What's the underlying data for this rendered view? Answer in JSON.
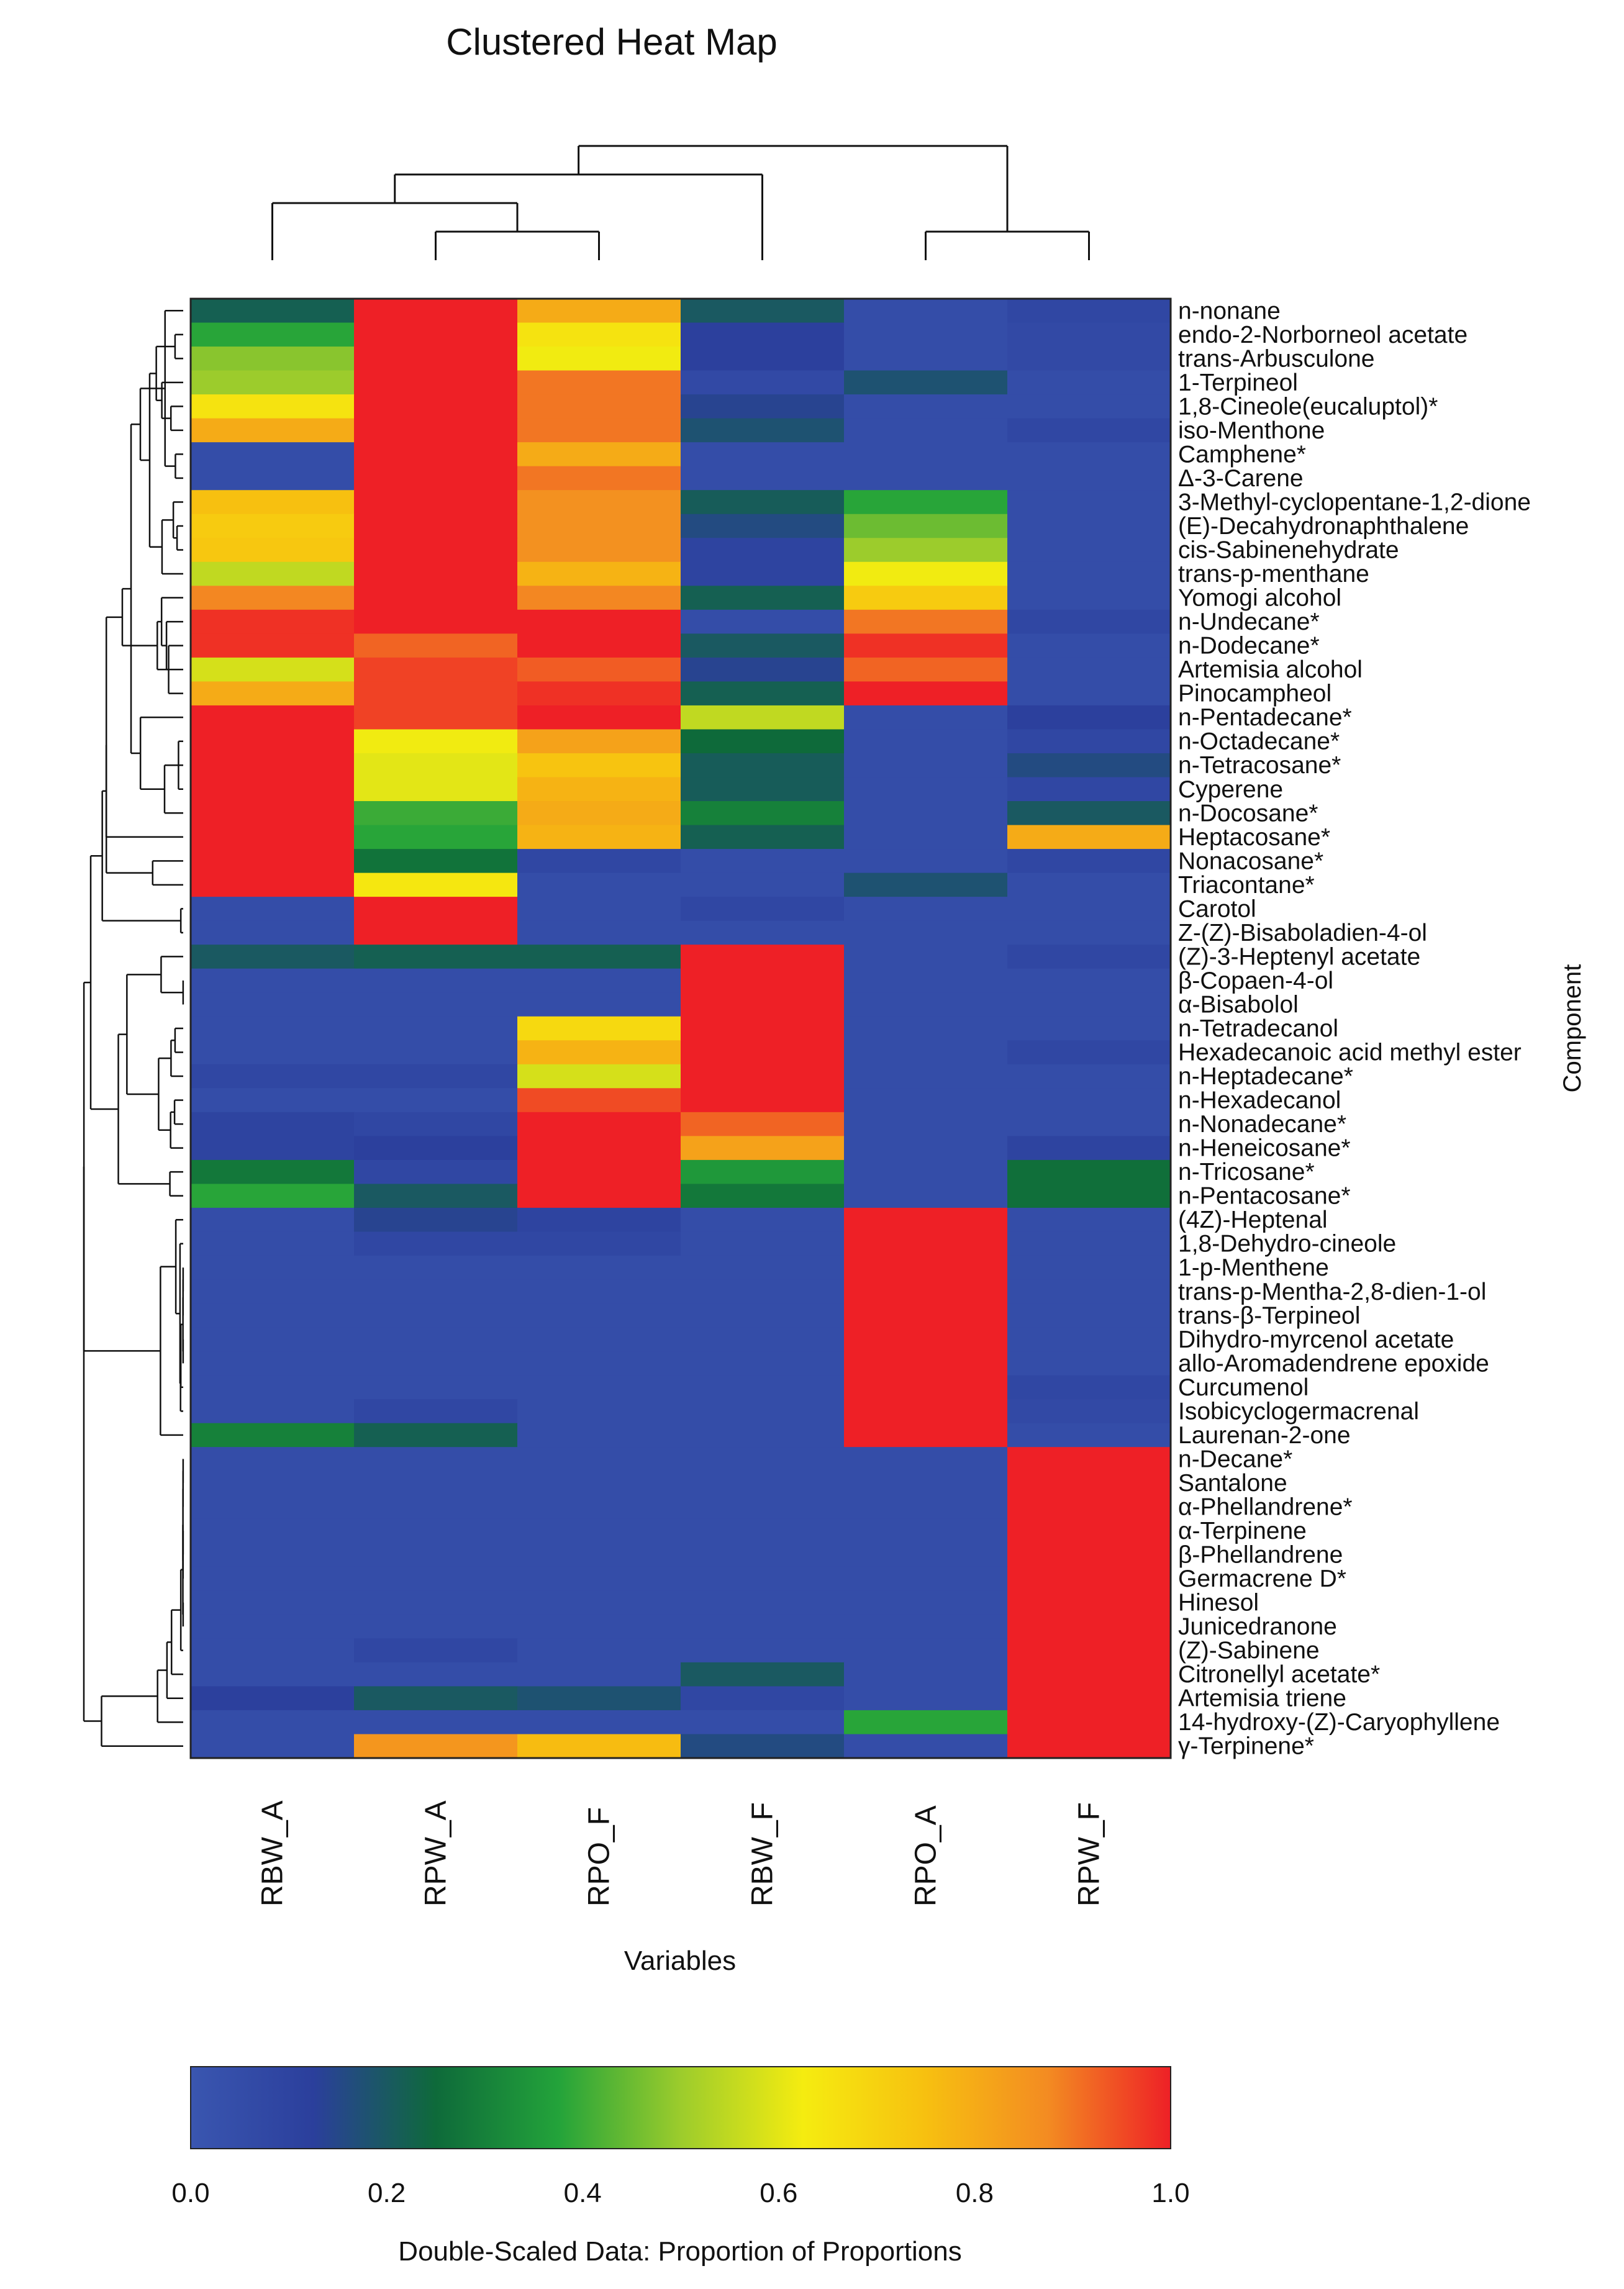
{
  "chart_data": {
    "type": "heatmap",
    "title": "Clustered Heat Map",
    "xlabel": "Variables",
    "ylabel": "Component",
    "columns": [
      "RBW_A",
      "RPW_A",
      "RPO_F",
      "RBW_F",
      "RPO_A",
      "RPW_F"
    ],
    "rows": [
      "n-nonane",
      "endo-2-Norborneol acetate",
      "trans-Arbusculone",
      "1-Terpineol",
      "1,8-Cineole(eucaluptol)*",
      "iso-Menthone",
      "Camphene*",
      "Δ-3-Carene",
      "3-Methyl-cyclopentane-1,2-dione",
      "(E)-Decahydronaphthalene",
      "cis-Sabinenehydrate",
      "trans-p-menthane",
      "Yomogi alcohol",
      "n-Undecane*",
      "n-Dodecane*",
      "Artemisia alcohol",
      "Pinocampheol",
      "n-Pentadecane*",
      "n-Octadecane*",
      "n-Tetracosane*",
      "Cyperene",
      "n-Docosane*",
      "Heptacosane*",
      "Nonacosane*",
      "Triacontane*",
      "Carotol",
      "Z-(Z)-Bisaboladien-4-ol",
      "(Z)-3-Heptenyl acetate",
      "β-Copaen-4-ol",
      "α-Bisabolol",
      "n-Tetradecanol",
      "Hexadecanoic acid methyl ester",
      "n-Heptadecane*",
      "n-Hexadecanol",
      "n-Nonadecane*",
      "n-Heneicosane*",
      "n-Tricosane*",
      "n-Pentacosane*",
      "(4Z)-Heptenal",
      "1,8-Dehydro-cineole",
      "1-p-Menthene",
      "trans-p-Mentha-2,8-dien-1-ol",
      "trans-β-Terpineol",
      "Dihydro-myrcenol acetate",
      "allo-Aromadendrene epoxide",
      "Curcumenol",
      "Isobicyclogermacrenal",
      "Laurenan-2-one",
      "n-Decane*",
      "Santalone",
      "α-Phellandrene*",
      "α-Terpinene",
      "β-Phellandrene",
      "Germacrene D*",
      "Hinesol",
      "Junicedranone",
      "(Z)-Sabinene",
      "Citronellyl acetate*",
      "Artemisia triene",
      "14-hydroxy-(Z)-Caryophyllene",
      "γ-Terpinene*"
    ],
    "values": [
      [
        0.22,
        1.0,
        0.8,
        0.2,
        0.05,
        0.08
      ],
      [
        0.38,
        1.0,
        0.65,
        0.12,
        0.05,
        0.07
      ],
      [
        0.48,
        1.0,
        0.62,
        0.12,
        0.05,
        0.07
      ],
      [
        0.5,
        1.0,
        0.9,
        0.07,
        0.18,
        0.05
      ],
      [
        0.65,
        1.0,
        0.9,
        0.14,
        0.05,
        0.05
      ],
      [
        0.8,
        1.0,
        0.9,
        0.18,
        0.05,
        0.08
      ],
      [
        0.05,
        1.0,
        0.8,
        0.05,
        0.05,
        0.05
      ],
      [
        0.05,
        1.0,
        0.9,
        0.05,
        0.05,
        0.05
      ],
      [
        0.75,
        1.0,
        0.86,
        0.21,
        0.38,
        0.05
      ],
      [
        0.72,
        1.0,
        0.86,
        0.16,
        0.45,
        0.05
      ],
      [
        0.73,
        1.0,
        0.86,
        0.1,
        0.5,
        0.05
      ],
      [
        0.55,
        1.0,
        0.78,
        0.1,
        0.62,
        0.05
      ],
      [
        0.88,
        1.0,
        0.88,
        0.22,
        0.72,
        0.05
      ],
      [
        0.98,
        1.0,
        1.0,
        0.05,
        0.9,
        0.08
      ],
      [
        0.98,
        0.92,
        1.0,
        0.2,
        0.98,
        0.05
      ],
      [
        0.58,
        0.96,
        0.93,
        0.14,
        0.92,
        0.05
      ],
      [
        0.8,
        0.96,
        0.98,
        0.22,
        1.0,
        0.05
      ],
      [
        1.0,
        0.96,
        1.0,
        0.55,
        0.05,
        0.12
      ],
      [
        1.0,
        0.62,
        0.82,
        0.25,
        0.05,
        0.08
      ],
      [
        1.0,
        0.6,
        0.74,
        0.21,
        0.05,
        0.16
      ],
      [
        1.0,
        0.6,
        0.78,
        0.21,
        0.05,
        0.08
      ],
      [
        1.0,
        0.4,
        0.8,
        0.3,
        0.05,
        0.2
      ],
      [
        1.0,
        0.38,
        0.78,
        0.22,
        0.05,
        0.8
      ],
      [
        1.0,
        0.27,
        0.08,
        0.05,
        0.05,
        0.08
      ],
      [
        1.0,
        0.64,
        0.05,
        0.05,
        0.18,
        0.05
      ],
      [
        0.05,
        1.0,
        0.05,
        0.08,
        0.05,
        0.05
      ],
      [
        0.05,
        1.0,
        0.05,
        0.05,
        0.05,
        0.05
      ],
      [
        0.2,
        0.22,
        0.22,
        1.0,
        0.05,
        0.08
      ],
      [
        0.05,
        0.05,
        0.05,
        1.0,
        0.05,
        0.05
      ],
      [
        0.05,
        0.05,
        0.05,
        1.0,
        0.05,
        0.05
      ],
      [
        0.05,
        0.05,
        0.68,
        1.0,
        0.05,
        0.05
      ],
      [
        0.05,
        0.05,
        0.78,
        1.0,
        0.05,
        0.08
      ],
      [
        0.08,
        0.08,
        0.58,
        1.0,
        0.05,
        0.05
      ],
      [
        0.05,
        0.05,
        0.95,
        1.0,
        0.05,
        0.05
      ],
      [
        0.1,
        0.08,
        1.0,
        0.92,
        0.05,
        0.05
      ],
      [
        0.1,
        0.12,
        1.0,
        0.82,
        0.05,
        0.1
      ],
      [
        0.28,
        0.08,
        1.0,
        0.35,
        0.05,
        0.26
      ],
      [
        0.38,
        0.2,
        1.0,
        0.28,
        0.05,
        0.26
      ],
      [
        0.05,
        0.14,
        0.1,
        0.05,
        1.0,
        0.05
      ],
      [
        0.05,
        0.08,
        0.08,
        0.05,
        1.0,
        0.05
      ],
      [
        0.05,
        0.05,
        0.05,
        0.05,
        1.0,
        0.05
      ],
      [
        0.05,
        0.05,
        0.05,
        0.05,
        1.0,
        0.05
      ],
      [
        0.05,
        0.05,
        0.05,
        0.05,
        1.0,
        0.05
      ],
      [
        0.05,
        0.05,
        0.05,
        0.05,
        1.0,
        0.05
      ],
      [
        0.05,
        0.05,
        0.05,
        0.05,
        1.0,
        0.05
      ],
      [
        0.05,
        0.05,
        0.05,
        0.05,
        1.0,
        0.08
      ],
      [
        0.05,
        0.08,
        0.05,
        0.05,
        1.0,
        0.07
      ],
      [
        0.3,
        0.22,
        0.05,
        0.05,
        1.0,
        0.05
      ],
      [
        0.05,
        0.05,
        0.05,
        0.05,
        0.05,
        1.0
      ],
      [
        0.05,
        0.05,
        0.05,
        0.05,
        0.05,
        1.0
      ],
      [
        0.05,
        0.05,
        0.05,
        0.05,
        0.05,
        1.0
      ],
      [
        0.05,
        0.05,
        0.05,
        0.05,
        0.05,
        1.0
      ],
      [
        0.05,
        0.05,
        0.05,
        0.05,
        0.05,
        1.0
      ],
      [
        0.05,
        0.05,
        0.05,
        0.05,
        0.05,
        1.0
      ],
      [
        0.05,
        0.05,
        0.05,
        0.05,
        0.05,
        1.0
      ],
      [
        0.05,
        0.05,
        0.05,
        0.05,
        0.05,
        1.0
      ],
      [
        0.05,
        0.08,
        0.05,
        0.05,
        0.05,
        1.0
      ],
      [
        0.05,
        0.05,
        0.05,
        0.2,
        0.05,
        1.0
      ],
      [
        0.12,
        0.2,
        0.18,
        0.08,
        0.05,
        1.0
      ],
      [
        0.05,
        0.05,
        0.05,
        0.05,
        0.38,
        1.0
      ],
      [
        0.05,
        0.85,
        0.76,
        0.16,
        0.05,
        1.0
      ]
    ],
    "colorbar": {
      "label": "Double-Scaled Data: Proportion of Proportions",
      "ticks": [
        "0.0",
        "0.2",
        "0.4",
        "0.6",
        "0.8",
        "1.0"
      ],
      "range": [
        0,
        1
      ],
      "colors": [
        "#3a56b0",
        "#2b3f9c",
        "#0e6a3a",
        "#23a33a",
        "#9ccc2c",
        "#f5ec10",
        "#f7c010",
        "#f38b22",
        "#ee2026"
      ]
    },
    "column_dendrogram": "(((RBW_A,(RPW_A,RPO_F)),RBW_F),(RPO_A,RPW_F))",
    "grid": false,
    "legend_position": "bottom"
  }
}
